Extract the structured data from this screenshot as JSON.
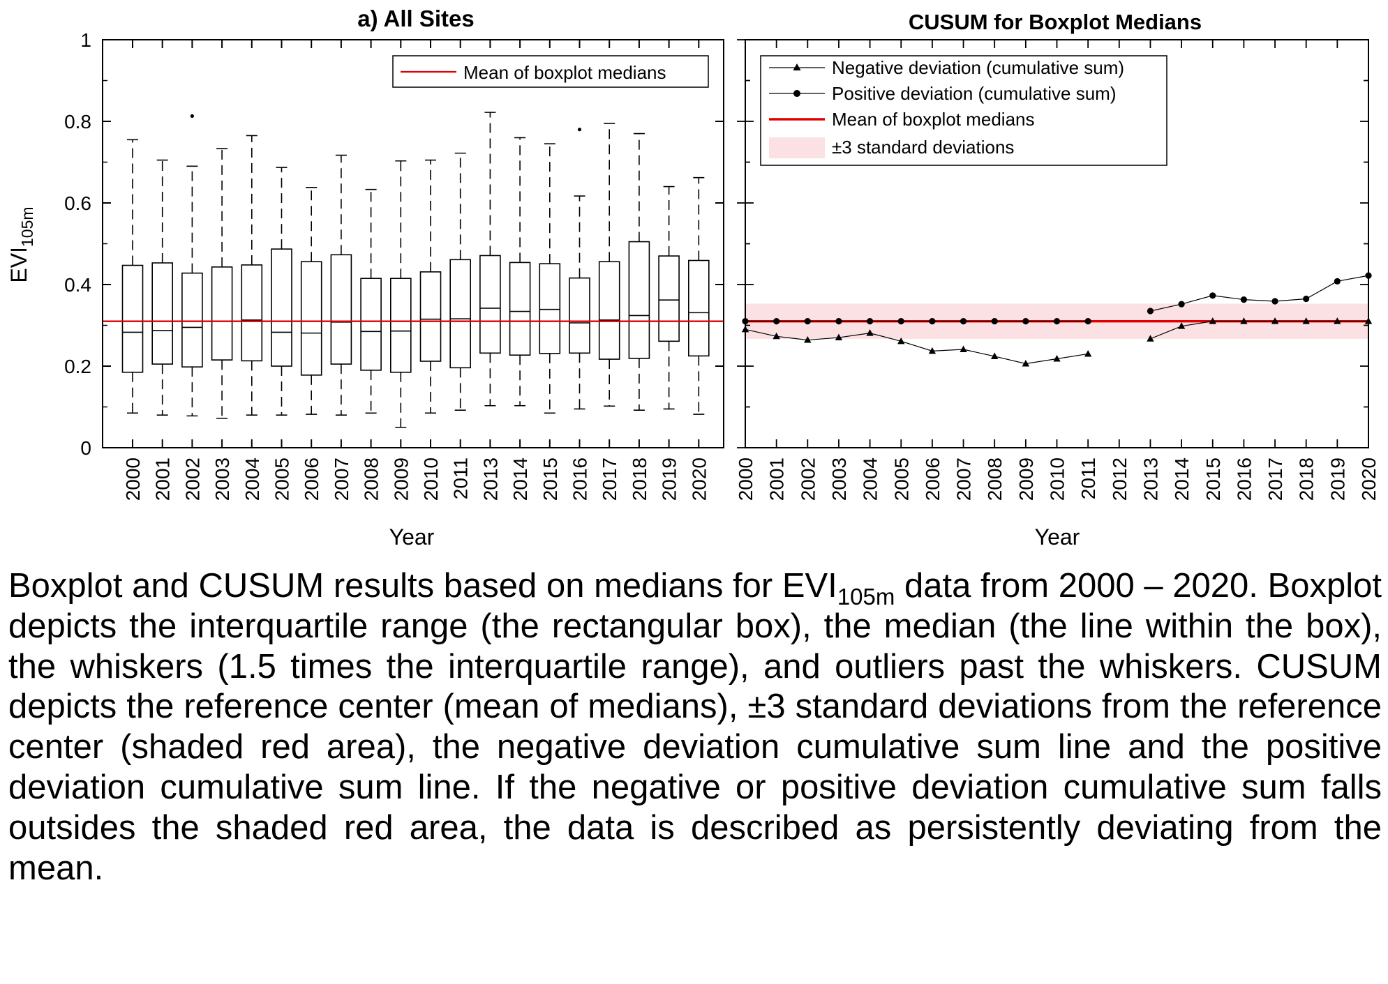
{
  "charts": {
    "left": {
      "title": "a) All Sites",
      "xlabel": "Year",
      "ylabel_main": "EVI",
      "ylabel_sub": "105m",
      "legend": {
        "mean_label": "Mean of boxplot medians"
      }
    },
    "right": {
      "title": "CUSUM for Boxplot Medians",
      "xlabel": "Year",
      "legend": {
        "negative_label": "Negative deviation (cumulative sum)",
        "positive_label": "Positive deviation (cumulative sum)",
        "mean_label": "Mean of boxplot medians",
        "band_label": "±3 standard deviations"
      }
    }
  },
  "colors": {
    "mean_line": "#e00000",
    "band_fill": "#fbe1e3",
    "ink": "#000000"
  },
  "chart_data": [
    {
      "type": "boxplot",
      "title": "a) All Sites",
      "xlabel": "Year",
      "ylabel": "EVI105m",
      "ylim": [
        0,
        1
      ],
      "yticks": [
        "0",
        "0.2",
        "0.4",
        "0.6",
        "0.8",
        "1"
      ],
      "mean_of_medians": 0.31,
      "grid": false,
      "legend_position": "top-right",
      "boxes": [
        {
          "year": "2000",
          "low": 0.085,
          "q1": 0.185,
          "median": 0.283,
          "q3": 0.447,
          "high": 0.755,
          "outliers": []
        },
        {
          "year": "2001",
          "low": 0.08,
          "q1": 0.205,
          "median": 0.287,
          "q3": 0.453,
          "high": 0.705,
          "outliers": []
        },
        {
          "year": "2002",
          "low": 0.078,
          "q1": 0.198,
          "median": 0.295,
          "q3": 0.428,
          "high": 0.69,
          "outliers": [
            0.813
          ]
        },
        {
          "year": "2003",
          "low": 0.072,
          "q1": 0.215,
          "median": 0.215,
          "q3": 0.443,
          "high": 0.733,
          "outliers": []
        },
        {
          "year": "2004",
          "low": 0.08,
          "q1": 0.213,
          "median": 0.313,
          "q3": 0.448,
          "high": 0.765,
          "outliers": []
        },
        {
          "year": "2005",
          "low": 0.08,
          "q1": 0.2,
          "median": 0.283,
          "q3": 0.487,
          "high": 0.687,
          "outliers": []
        },
        {
          "year": "2006",
          "low": 0.082,
          "q1": 0.178,
          "median": 0.281,
          "q3": 0.456,
          "high": 0.638,
          "outliers": []
        },
        {
          "year": "2007",
          "low": 0.08,
          "q1": 0.205,
          "median": 0.308,
          "q3": 0.473,
          "high": 0.717,
          "outliers": []
        },
        {
          "year": "2008",
          "low": 0.085,
          "q1": 0.19,
          "median": 0.285,
          "q3": 0.415,
          "high": 0.633,
          "outliers": []
        },
        {
          "year": "2009",
          "low": 0.05,
          "q1": 0.185,
          "median": 0.286,
          "q3": 0.415,
          "high": 0.703,
          "outliers": []
        },
        {
          "year": "2010",
          "low": 0.085,
          "q1": 0.212,
          "median": 0.315,
          "q3": 0.431,
          "high": 0.705,
          "outliers": []
        },
        {
          "year": "2011",
          "low": 0.092,
          "q1": 0.196,
          "median": 0.316,
          "q3": 0.461,
          "high": 0.722,
          "outliers": []
        },
        {
          "year": "2013",
          "low": 0.103,
          "q1": 0.232,
          "median": 0.342,
          "q3": 0.471,
          "high": 0.822,
          "outliers": []
        },
        {
          "year": "2014",
          "low": 0.103,
          "q1": 0.227,
          "median": 0.334,
          "q3": 0.454,
          "high": 0.76,
          "outliers": []
        },
        {
          "year": "2015",
          "low": 0.085,
          "q1": 0.231,
          "median": 0.339,
          "q3": 0.451,
          "high": 0.745,
          "outliers": []
        },
        {
          "year": "2016",
          "low": 0.095,
          "q1": 0.232,
          "median": 0.306,
          "q3": 0.416,
          "high": 0.617,
          "outliers": [
            0.78
          ]
        },
        {
          "year": "2017",
          "low": 0.102,
          "q1": 0.217,
          "median": 0.313,
          "q3": 0.456,
          "high": 0.795,
          "outliers": []
        },
        {
          "year": "2018",
          "low": 0.092,
          "q1": 0.219,
          "median": 0.324,
          "q3": 0.505,
          "high": 0.77,
          "outliers": []
        },
        {
          "year": "2019",
          "low": 0.095,
          "q1": 0.261,
          "median": 0.362,
          "q3": 0.47,
          "high": 0.64,
          "outliers": []
        },
        {
          "year": "2020",
          "low": 0.082,
          "q1": 0.225,
          "median": 0.331,
          "q3": 0.459,
          "high": 0.662,
          "outliers": []
        }
      ]
    },
    {
      "type": "line",
      "title": "CUSUM for Boxplot Medians",
      "xlabel": "Year",
      "ylim": [
        0,
        1
      ],
      "legend_position": "top-left",
      "categories": [
        "2000",
        "2001",
        "2002",
        "2003",
        "2004",
        "2005",
        "2006",
        "2007",
        "2008",
        "2009",
        "2010",
        "2011",
        "2012",
        "2013",
        "2014",
        "2015",
        "2016",
        "2017",
        "2018",
        "2019",
        "2020"
      ],
      "mean": 0.31,
      "band": [
        0.267,
        0.353
      ],
      "series": [
        {
          "name": "Negative deviation (cumulative sum)",
          "marker": "triangle",
          "segments": [
            {
              "x": [
                "2000",
                "2001",
                "2002",
                "2003",
                "2004",
                "2005",
                "2006",
                "2007",
                "2008",
                "2009",
                "2010",
                "2011"
              ],
              "y": [
                0.29,
                0.273,
                0.264,
                0.27,
                0.281,
                0.261,
                0.237,
                0.241,
                0.224,
                0.206,
                0.218,
                0.23
              ]
            },
            {
              "x": [
                "2013",
                "2014",
                "2015",
                "2016",
                "2017",
                "2018",
                "2019",
                "2020"
              ],
              "y": [
                0.267,
                0.298,
                0.31,
                0.31,
                0.31,
                0.31,
                0.31,
                0.31
              ]
            }
          ]
        },
        {
          "name": "Positive deviation (cumulative sum)",
          "marker": "circle",
          "segments": [
            {
              "x": [
                "2000",
                "2001",
                "2002",
                "2003",
                "2004",
                "2005",
                "2006",
                "2007",
                "2008",
                "2009",
                "2010",
                "2011"
              ],
              "y": [
                0.31,
                0.31,
                0.31,
                0.31,
                0.31,
                0.31,
                0.31,
                0.31,
                0.31,
                0.31,
                0.31,
                0.31
              ]
            },
            {
              "x": [
                "2013",
                "2014",
                "2015",
                "2016",
                "2017",
                "2018",
                "2019",
                "2020"
              ],
              "y": [
                0.335,
                0.352,
                0.373,
                0.363,
                0.359,
                0.365,
                0.408,
                0.422
              ]
            }
          ]
        },
        {
          "name": "Mean of boxplot medians",
          "constant": 0.31
        },
        {
          "name": "±3 standard deviations",
          "range": [
            0.267,
            0.353
          ]
        }
      ]
    }
  ],
  "caption": {
    "line1_before": "Boxplot and CUSUM results based on medians for EVI",
    "line1_sub": "105m",
    "line1_after": " data from 2000 – 2020. Boxplot depicts the interquartile range (the rectangular box), the median (the line within the box), the whiskers (1.5 times the interquartile range), and outliers past the whiskers. CUSUM depicts the reference center (mean of medians), ±3 standard deviations from the reference center (shaded red area), the negative deviation cumulative sum line and the positive deviation cumulative sum line. If the negative or positive deviation cumulative sum falls outsides the shaded red area, the data is described as persistently deviating from the mean."
  }
}
